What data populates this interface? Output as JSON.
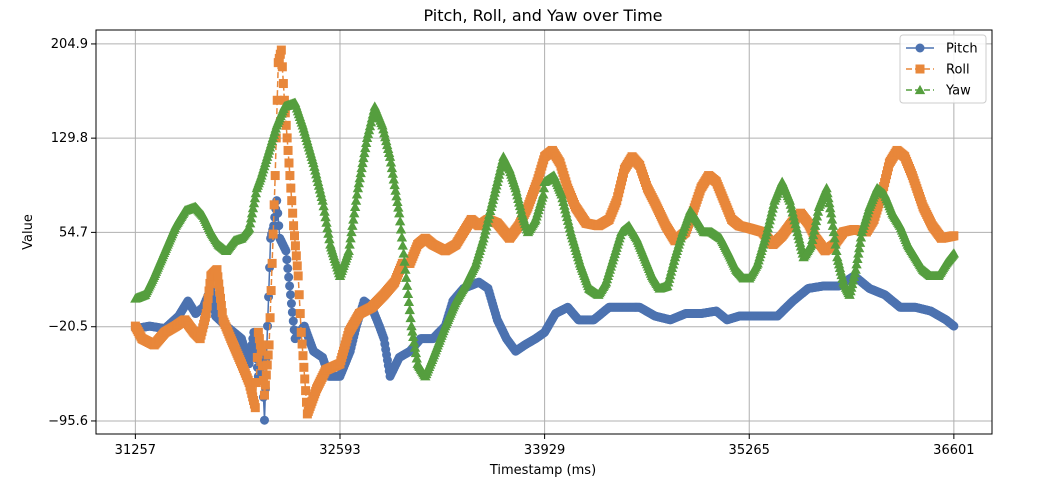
{
  "chart_data": {
    "type": "line",
    "title": "Pitch, Roll, and Yaw over Time",
    "xlabel": "Timestamp (ms)",
    "ylabel": "Value",
    "xlim": [
      31000,
      36850
    ],
    "ylim": [
      -106,
      216
    ],
    "xticks": [
      31257,
      32593,
      33929,
      35265,
      36601
    ],
    "yticks": [
      -95.6,
      -20.5,
      54.7,
      129.8,
      204.9
    ],
    "grid": true,
    "legend": "top-right",
    "series": [
      {
        "name": "Pitch",
        "color": "#4c72b0",
        "marker": "circle",
        "linestyle": "solid",
        "points": [
          [
            31257,
            -22
          ],
          [
            31350,
            -20
          ],
          [
            31450,
            -22
          ],
          [
            31540,
            -12
          ],
          [
            31600,
            0
          ],
          [
            31650,
            -10
          ],
          [
            31700,
            -5
          ],
          [
            31750,
            10
          ],
          [
            31780,
            -12
          ],
          [
            31850,
            -20
          ],
          [
            31950,
            -30
          ],
          [
            32000,
            -50
          ],
          [
            32030,
            -25
          ],
          [
            32060,
            -60
          ],
          [
            32080,
            -40
          ],
          [
            32100,
            -95
          ],
          [
            32120,
            -20
          ],
          [
            32140,
            50
          ],
          [
            32160,
            60
          ],
          [
            32180,
            80
          ],
          [
            32200,
            50
          ],
          [
            32240,
            40
          ],
          [
            32270,
            5
          ],
          [
            32300,
            -30
          ],
          [
            32360,
            -20
          ],
          [
            32420,
            -40
          ],
          [
            32480,
            -45
          ],
          [
            32520,
            -60
          ],
          [
            32593,
            -60
          ],
          [
            32660,
            -40
          ],
          [
            32700,
            -20
          ],
          [
            32750,
            0
          ],
          [
            32800,
            -5
          ],
          [
            32850,
            -20
          ],
          [
            32880,
            -30
          ],
          [
            32920,
            -60
          ],
          [
            32980,
            -45
          ],
          [
            33050,
            -40
          ],
          [
            33120,
            -30
          ],
          [
            33200,
            -30
          ],
          [
            33280,
            -20
          ],
          [
            33330,
            0
          ],
          [
            33400,
            10
          ],
          [
            33500,
            15
          ],
          [
            33560,
            10
          ],
          [
            33620,
            -15
          ],
          [
            33680,
            -30
          ],
          [
            33740,
            -40
          ],
          [
            33800,
            -35
          ],
          [
            33870,
            -30
          ],
          [
            33929,
            -25
          ],
          [
            34000,
            -10
          ],
          [
            34080,
            -5
          ],
          [
            34150,
            -15
          ],
          [
            34250,
            -15
          ],
          [
            34350,
            -5
          ],
          [
            34450,
            -5
          ],
          [
            34550,
            -5
          ],
          [
            34650,
            -12
          ],
          [
            34750,
            -15
          ],
          [
            34850,
            -10
          ],
          [
            34950,
            -10
          ],
          [
            35050,
            -8
          ],
          [
            35120,
            -15
          ],
          [
            35200,
            -12
          ],
          [
            35265,
            -12
          ],
          [
            35350,
            -12
          ],
          [
            35450,
            -12
          ],
          [
            35550,
            0
          ],
          [
            35650,
            10
          ],
          [
            35750,
            12
          ],
          [
            35850,
            12
          ],
          [
            35950,
            20
          ],
          [
            36050,
            10
          ],
          [
            36150,
            5
          ],
          [
            36250,
            -5
          ],
          [
            36350,
            -5
          ],
          [
            36450,
            -8
          ],
          [
            36550,
            -15
          ],
          [
            36601,
            -20
          ]
        ]
      },
      {
        "name": "Roll",
        "color": "#e8873a",
        "marker": "square",
        "linestyle": "dashed",
        "points": [
          [
            31257,
            -20
          ],
          [
            31300,
            -30
          ],
          [
            31380,
            -35
          ],
          [
            31450,
            -25
          ],
          [
            31520,
            -20
          ],
          [
            31580,
            -15
          ],
          [
            31640,
            -25
          ],
          [
            31680,
            -30
          ],
          [
            31720,
            -10
          ],
          [
            31750,
            20
          ],
          [
            31790,
            25
          ],
          [
            31830,
            -15
          ],
          [
            31880,
            -30
          ],
          [
            31950,
            -50
          ],
          [
            32000,
            -65
          ],
          [
            32040,
            -85
          ],
          [
            32060,
            -25
          ],
          [
            32080,
            -40
          ],
          [
            32100,
            -75
          ],
          [
            32130,
            -35
          ],
          [
            32150,
            30
          ],
          [
            32170,
            100
          ],
          [
            32190,
            190
          ],
          [
            32210,
            200
          ],
          [
            32230,
            160
          ],
          [
            32260,
            110
          ],
          [
            32290,
            60
          ],
          [
            32320,
            20
          ],
          [
            32340,
            -25
          ],
          [
            32380,
            -90
          ],
          [
            32440,
            -70
          ],
          [
            32500,
            -55
          ],
          [
            32593,
            -50
          ],
          [
            32650,
            -25
          ],
          [
            32720,
            -10
          ],
          [
            32800,
            -5
          ],
          [
            32880,
            5
          ],
          [
            32950,
            15
          ],
          [
            33000,
            30
          ],
          [
            33050,
            30
          ],
          [
            33100,
            45
          ],
          [
            33150,
            50
          ],
          [
            33200,
            45
          ],
          [
            33280,
            40
          ],
          [
            33350,
            45
          ],
          [
            33400,
            55
          ],
          [
            33450,
            65
          ],
          [
            33500,
            60
          ],
          [
            33560,
            65
          ],
          [
            33620,
            62
          ],
          [
            33700,
            50
          ],
          [
            33760,
            60
          ],
          [
            33820,
            75
          ],
          [
            33880,
            95
          ],
          [
            33929,
            115
          ],
          [
            33980,
            120
          ],
          [
            34030,
            110
          ],
          [
            34080,
            90
          ],
          [
            34130,
            75
          ],
          [
            34200,
            62
          ],
          [
            34280,
            60
          ],
          [
            34350,
            65
          ],
          [
            34400,
            80
          ],
          [
            34450,
            105
          ],
          [
            34500,
            115
          ],
          [
            34550,
            108
          ],
          [
            34600,
            90
          ],
          [
            34650,
            78
          ],
          [
            34720,
            60
          ],
          [
            34780,
            48
          ],
          [
            34850,
            55
          ],
          [
            34900,
            72
          ],
          [
            34950,
            90
          ],
          [
            35000,
            100
          ],
          [
            35050,
            95
          ],
          [
            35100,
            80
          ],
          [
            35150,
            65
          ],
          [
            35200,
            60
          ],
          [
            35265,
            58
          ],
          [
            35350,
            55
          ],
          [
            35420,
            45
          ],
          [
            35480,
            52
          ],
          [
            35540,
            62
          ],
          [
            35600,
            70
          ],
          [
            35650,
            62
          ],
          [
            35700,
            50
          ],
          [
            35760,
            40
          ],
          [
            35820,
            45
          ],
          [
            35880,
            55
          ],
          [
            35950,
            57
          ],
          [
            36030,
            55
          ],
          [
            36080,
            65
          ],
          [
            36130,
            85
          ],
          [
            36180,
            110
          ],
          [
            36230,
            120
          ],
          [
            36280,
            115
          ],
          [
            36330,
            100
          ],
          [
            36400,
            75
          ],
          [
            36460,
            60
          ],
          [
            36520,
            50
          ],
          [
            36601,
            52
          ]
        ]
      },
      {
        "name": "Yaw",
        "color": "#559e3e",
        "marker": "triangle",
        "linestyle": "dashed",
        "points": [
          [
            31257,
            2
          ],
          [
            31320,
            5
          ],
          [
            31380,
            20
          ],
          [
            31450,
            40
          ],
          [
            31520,
            60
          ],
          [
            31580,
            72
          ],
          [
            31650,
            75
          ],
          [
            31700,
            68
          ],
          [
            31750,
            55
          ],
          [
            31800,
            45
          ],
          [
            31850,
            40
          ],
          [
            31900,
            48
          ],
          [
            31950,
            50
          ],
          [
            32000,
            58
          ],
          [
            32050,
            90
          ],
          [
            32080,
            100
          ],
          [
            32130,
            120
          ],
          [
            32180,
            140
          ],
          [
            32230,
            155
          ],
          [
            32300,
            158
          ],
          [
            32350,
            140
          ],
          [
            32420,
            110
          ],
          [
            32480,
            80
          ],
          [
            32530,
            45
          ],
          [
            32593,
            20
          ],
          [
            32650,
            40
          ],
          [
            32710,
            90
          ],
          [
            32770,
            130
          ],
          [
            32820,
            155
          ],
          [
            32870,
            140
          ],
          [
            32920,
            115
          ],
          [
            32980,
            70
          ],
          [
            33020,
            25
          ],
          [
            33060,
            -20
          ],
          [
            33100,
            -50
          ],
          [
            33150,
            -60
          ],
          [
            33200,
            -45
          ],
          [
            33280,
            -20
          ],
          [
            33350,
            0
          ],
          [
            33420,
            15
          ],
          [
            33480,
            30
          ],
          [
            33530,
            50
          ],
          [
            33580,
            75
          ],
          [
            33620,
            95
          ],
          [
            33660,
            115
          ],
          [
            33700,
            105
          ],
          [
            33740,
            90
          ],
          [
            33780,
            70
          ],
          [
            33820,
            55
          ],
          [
            33870,
            65
          ],
          [
            33920,
            85
          ],
          [
            33929,
            95
          ],
          [
            33990,
            100
          ],
          [
            34040,
            85
          ],
          [
            34100,
            55
          ],
          [
            34160,
            30
          ],
          [
            34220,
            10
          ],
          [
            34280,
            5
          ],
          [
            34330,
            15
          ],
          [
            34380,
            35
          ],
          [
            34430,
            55
          ],
          [
            34480,
            60
          ],
          [
            34530,
            50
          ],
          [
            34580,
            35
          ],
          [
            34630,
            20
          ],
          [
            34680,
            10
          ],
          [
            34730,
            12
          ],
          [
            34780,
            35
          ],
          [
            34830,
            55
          ],
          [
            34880,
            72
          ],
          [
            34920,
            65
          ],
          [
            34970,
            55
          ],
          [
            35020,
            55
          ],
          [
            35080,
            50
          ],
          [
            35130,
            38
          ],
          [
            35180,
            25
          ],
          [
            35230,
            18
          ],
          [
            35265,
            18
          ],
          [
            35320,
            30
          ],
          [
            35380,
            55
          ],
          [
            35430,
            80
          ],
          [
            35480,
            95
          ],
          [
            35530,
            80
          ],
          [
            35580,
            55
          ],
          [
            35620,
            35
          ],
          [
            35670,
            45
          ],
          [
            35720,
            75
          ],
          [
            35770,
            90
          ],
          [
            35800,
            70
          ],
          [
            35840,
            35
          ],
          [
            35880,
            15
          ],
          [
            35920,
            5
          ],
          [
            35960,
            25
          ],
          [
            36000,
            55
          ],
          [
            36050,
            75
          ],
          [
            36100,
            90
          ],
          [
            36150,
            85
          ],
          [
            36200,
            70
          ],
          [
            36250,
            60
          ],
          [
            36300,
            45
          ],
          [
            36350,
            35
          ],
          [
            36400,
            25
          ],
          [
            36450,
            20
          ],
          [
            36500,
            20
          ],
          [
            36550,
            30
          ],
          [
            36601,
            38
          ]
        ]
      }
    ]
  }
}
